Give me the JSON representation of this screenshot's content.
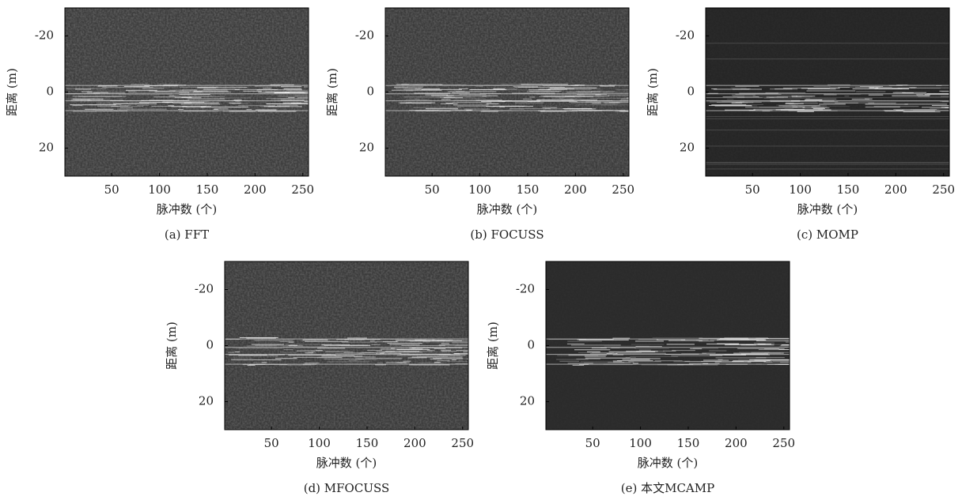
{
  "chart_data": [
    {
      "type": "heatmap",
      "caption": "(a) FFT",
      "xlabel": "脉冲数 (个)",
      "ylabel": "距离 (m)",
      "xlim": [
        1,
        256
      ],
      "xticks": [
        50,
        100,
        150,
        200,
        250
      ],
      "ylim": [
        -30,
        30
      ],
      "yticks": [
        -20,
        0,
        20
      ]
    },
    {
      "type": "heatmap",
      "caption": "(b) FOCUSS",
      "xlabel": "脉冲数 (个)",
      "ylabel": "距离 (m)",
      "xlim": [
        1,
        256
      ],
      "xticks": [
        50,
        100,
        150,
        200,
        250
      ],
      "ylim": [
        -30,
        30
      ],
      "yticks": [
        -20,
        0,
        20
      ]
    },
    {
      "type": "heatmap",
      "caption": "(c) MOMP",
      "xlabel": "脉冲数 (个)",
      "ylabel": "距离 (m)",
      "xlim": [
        1,
        256
      ],
      "xticks": [
        50,
        100,
        150,
        200,
        250
      ],
      "ylim": [
        -30,
        30
      ],
      "yticks": [
        -20,
        0,
        20
      ]
    },
    {
      "type": "heatmap",
      "caption": "(d) MFOCUSS",
      "xlabel": "脉冲数 (个)",
      "ylabel": "距离 (m)",
      "xlim": [
        1,
        256
      ],
      "xticks": [
        50,
        100,
        150,
        200,
        250
      ],
      "ylim": [
        -30,
        30
      ],
      "yticks": [
        -20,
        0,
        20
      ]
    },
    {
      "type": "heatmap",
      "caption": "(e) 本文MCAMP",
      "xlabel": "脉冲数 (个)",
      "ylabel": "距离 (m)",
      "xlim": [
        1,
        256
      ],
      "xticks": [
        50,
        100,
        150,
        200,
        250
      ],
      "ylim": [
        -30,
        30
      ],
      "yticks": [
        -20,
        0,
        20
      ]
    }
  ]
}
